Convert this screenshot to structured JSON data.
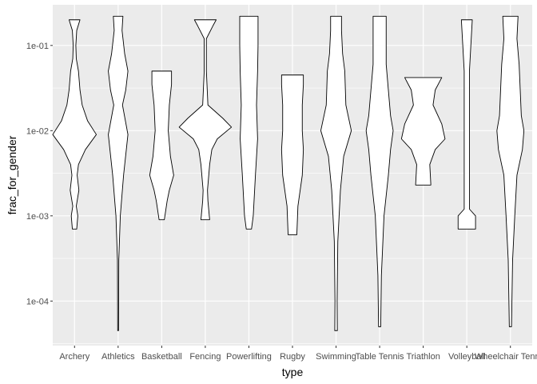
{
  "chart_data": {
    "type": "violin",
    "title": "",
    "xlabel": "type",
    "ylabel": "frac_for_gender",
    "y_scale": "log10",
    "ylim": [
      3e-05,
      0.3
    ],
    "y_ticks": [
      {
        "value": 0.0001,
        "label": "1e-04"
      },
      {
        "value": 0.001,
        "label": "1e-03"
      },
      {
        "value": 0.01,
        "label": "1e-02"
      },
      {
        "value": 0.1,
        "label": "1e-01"
      }
    ],
    "grid": true,
    "legend": "none",
    "colors": {
      "panel": "#ebebeb",
      "grid": "#ffffff",
      "outline": "#000000",
      "fill": "#ffffff"
    },
    "categories": [
      "Archery",
      "Athletics",
      "Basketball",
      "Fencing",
      "Powerlifting",
      "Rugby",
      "Swimming",
      "Table Tennis",
      "Triathlon",
      "Volleyball",
      "Wheelchair Tennis"
    ],
    "violins": [
      {
        "category": "Archery",
        "min": 0.0007,
        "max": 0.2,
        "profile": [
          [
            0.0007,
            0.1
          ],
          [
            0.001,
            0.15
          ],
          [
            0.0013,
            0.08
          ],
          [
            0.002,
            0.2
          ],
          [
            0.003,
            0.12
          ],
          [
            0.004,
            0.18
          ],
          [
            0.006,
            0.5
          ],
          [
            0.009,
            1.0
          ],
          [
            0.013,
            0.6
          ],
          [
            0.02,
            0.35
          ],
          [
            0.03,
            0.25
          ],
          [
            0.05,
            0.18
          ],
          [
            0.07,
            0.08
          ],
          [
            0.1,
            0.06
          ],
          [
            0.15,
            0.1
          ],
          [
            0.2,
            0.25
          ]
        ]
      },
      {
        "category": "Athletics",
        "min": 4.5e-05,
        "max": 0.22,
        "profile": [
          [
            4.5e-05,
            0.02
          ],
          [
            0.0003,
            0.03
          ],
          [
            0.001,
            0.1
          ],
          [
            0.003,
            0.25
          ],
          [
            0.009,
            0.45
          ],
          [
            0.02,
            0.2
          ],
          [
            0.03,
            0.35
          ],
          [
            0.05,
            0.45
          ],
          [
            0.08,
            0.3
          ],
          [
            0.15,
            0.18
          ],
          [
            0.22,
            0.22
          ]
        ]
      },
      {
        "category": "Basketball",
        "min": 0.0009,
        "max": 0.05,
        "profile": [
          [
            0.0009,
            0.12
          ],
          [
            0.0015,
            0.25
          ],
          [
            0.002,
            0.35
          ],
          [
            0.003,
            0.55
          ],
          [
            0.005,
            0.4
          ],
          [
            0.01,
            0.3
          ],
          [
            0.02,
            0.35
          ],
          [
            0.035,
            0.45
          ],
          [
            0.05,
            0.45
          ]
        ]
      },
      {
        "category": "Fencing",
        "min": 0.0009,
        "max": 0.2,
        "profile": [
          [
            0.0009,
            0.2
          ],
          [
            0.0015,
            0.12
          ],
          [
            0.002,
            0.1
          ],
          [
            0.004,
            0.2
          ],
          [
            0.006,
            0.3
          ],
          [
            0.008,
            0.55
          ],
          [
            0.011,
            1.2
          ],
          [
            0.014,
            0.8
          ],
          [
            0.02,
            0.12
          ],
          [
            0.05,
            0.05
          ],
          [
            0.12,
            0.05
          ],
          [
            0.17,
            0.35
          ],
          [
            0.2,
            0.5
          ]
        ]
      },
      {
        "category": "Powerlifting",
        "min": 0.0007,
        "max": 0.22,
        "profile": [
          [
            0.0007,
            0.12
          ],
          [
            0.001,
            0.2
          ],
          [
            0.003,
            0.3
          ],
          [
            0.008,
            0.4
          ],
          [
            0.02,
            0.35
          ],
          [
            0.05,
            0.4
          ],
          [
            0.1,
            0.42
          ],
          [
            0.22,
            0.42
          ]
        ]
      },
      {
        "category": "Rugby",
        "min": 0.0006,
        "max": 0.045,
        "profile": [
          [
            0.0006,
            0.2
          ],
          [
            0.0013,
            0.25
          ],
          [
            0.003,
            0.45
          ],
          [
            0.006,
            0.5
          ],
          [
            0.01,
            0.45
          ],
          [
            0.02,
            0.45
          ],
          [
            0.035,
            0.5
          ],
          [
            0.045,
            0.5
          ]
        ]
      },
      {
        "category": "Swimming",
        "min": 4.5e-05,
        "max": 0.22,
        "profile": [
          [
            4.5e-05,
            0.06
          ],
          [
            0.0001,
            0.05
          ],
          [
            0.0005,
            0.08
          ],
          [
            0.002,
            0.2
          ],
          [
            0.005,
            0.35
          ],
          [
            0.01,
            0.7
          ],
          [
            0.02,
            0.45
          ],
          [
            0.05,
            0.4
          ],
          [
            0.08,
            0.3
          ],
          [
            0.15,
            0.25
          ],
          [
            0.22,
            0.25
          ]
        ]
      },
      {
        "category": "Table Tennis",
        "min": 5e-05,
        "max": 0.22,
        "profile": [
          [
            5e-05,
            0.05
          ],
          [
            0.0002,
            0.08
          ],
          [
            0.001,
            0.2
          ],
          [
            0.003,
            0.4
          ],
          [
            0.006,
            0.5
          ],
          [
            0.01,
            0.62
          ],
          [
            0.015,
            0.5
          ],
          [
            0.03,
            0.4
          ],
          [
            0.06,
            0.3
          ],
          [
            0.1,
            0.3
          ],
          [
            0.22,
            0.3
          ]
        ]
      },
      {
        "category": "Triathlon",
        "min": 0.0023,
        "max": 0.042,
        "profile": [
          [
            0.0023,
            0.35
          ],
          [
            0.004,
            0.3
          ],
          [
            0.006,
            0.55
          ],
          [
            0.008,
            1.0
          ],
          [
            0.012,
            0.85
          ],
          [
            0.02,
            0.45
          ],
          [
            0.03,
            0.55
          ],
          [
            0.042,
            0.85
          ]
        ]
      },
      {
        "category": "Volleyball",
        "min": 0.0007,
        "max": 0.2,
        "profile": [
          [
            0.0007,
            0.4
          ],
          [
            0.001,
            0.4
          ],
          [
            0.0012,
            0.12
          ],
          [
            0.003,
            0.12
          ],
          [
            0.01,
            0.12
          ],
          [
            0.05,
            0.12
          ],
          [
            0.2,
            0.25
          ]
        ]
      },
      {
        "category": "Wheelchair Tennis",
        "min": 5e-05,
        "max": 0.22,
        "profile": [
          [
            5e-05,
            0.05
          ],
          [
            0.0003,
            0.1
          ],
          [
            0.001,
            0.2
          ],
          [
            0.003,
            0.3
          ],
          [
            0.006,
            0.55
          ],
          [
            0.01,
            0.62
          ],
          [
            0.015,
            0.5
          ],
          [
            0.03,
            0.45
          ],
          [
            0.06,
            0.4
          ],
          [
            0.12,
            0.3
          ],
          [
            0.22,
            0.35
          ]
        ]
      }
    ]
  }
}
